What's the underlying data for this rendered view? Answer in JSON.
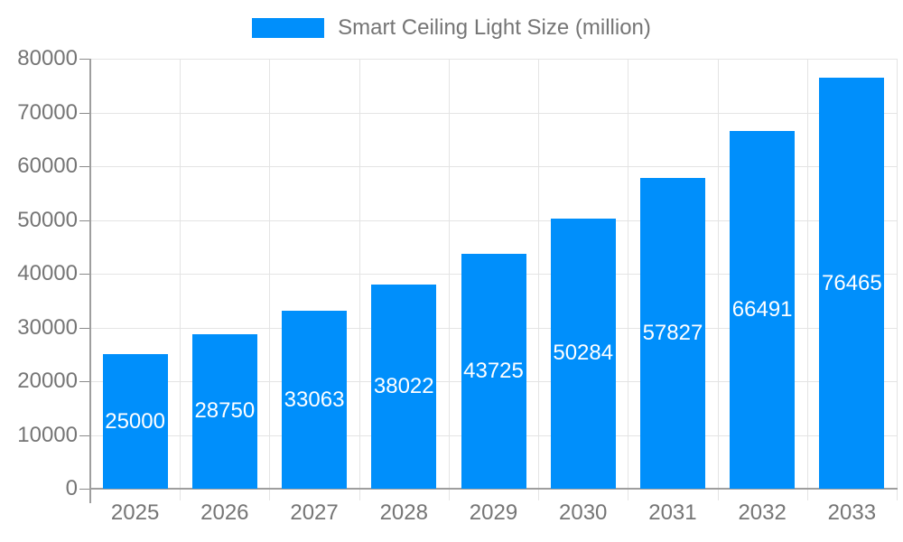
{
  "chart_data": {
    "type": "bar",
    "title": "",
    "legend": {
      "label": "Smart Ceiling Light Size (million)",
      "position": "top"
    },
    "categories": [
      "2025",
      "2026",
      "2027",
      "2028",
      "2029",
      "2030",
      "2031",
      "2032",
      "2033"
    ],
    "series": [
      {
        "name": "Smart Ceiling Light Size (million)",
        "values": [
          25000,
          28750,
          33063,
          38022,
          43725,
          50284,
          57827,
          66491,
          76465
        ]
      }
    ],
    "bar_labels": [
      "25000",
      "28750",
      "33063",
      "38022",
      "43725",
      "50284",
      "57827",
      "66491",
      "76465"
    ],
    "xlabel": "",
    "ylabel": "",
    "ylim": [
      0,
      80000
    ],
    "yticks": [
      0,
      10000,
      20000,
      30000,
      40000,
      50000,
      60000,
      70000,
      80000
    ],
    "ytick_labels": [
      "0",
      "10000",
      "20000",
      "30000",
      "40000",
      "50000",
      "60000",
      "70000",
      "80000"
    ],
    "grid": true,
    "colors": {
      "bar": "#008FFB",
      "bar_label": "#FFFFFF",
      "axis": "#9E9E9E",
      "gridline": "#E4E4E4",
      "tick": "#8A8A8A",
      "text": "#757575",
      "background": "#FFFFFF"
    }
  }
}
